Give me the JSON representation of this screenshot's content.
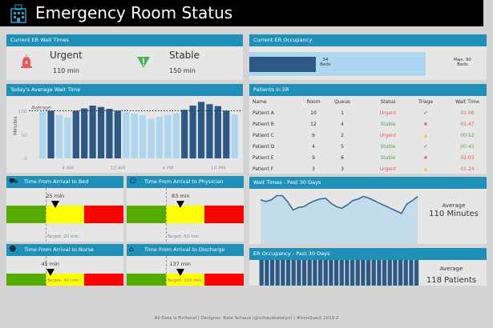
{
  "header": {
    "title": "Emergency Room Status",
    "icon": "hospital-icon"
  },
  "wait_times": {
    "title": "Current ER Wait Times",
    "urgent": {
      "label": "Urgent",
      "value": "110 min",
      "icon": "alarm-icon",
      "color": "#e85a5a"
    },
    "stable": {
      "label": "Stable",
      "value": "150 min",
      "icon": "warning-triangle-icon",
      "color": "#4caf50"
    }
  },
  "occupancy": {
    "title": "Current ER Occupancy",
    "current": 34,
    "current_label": "34",
    "current_unit": "Beds",
    "max": 90,
    "max_label": "Max. 90",
    "max_unit": "Beds"
  },
  "today_wait": {
    "title": "Today's Average Wait Time",
    "chart_data": {
      "type": "bar",
      "ylabel": "Minutes",
      "yticks": [
        0,
        50,
        100
      ],
      "ylim": [
        0,
        125
      ],
      "xticks": [
        "4 AM",
        "10 AM",
        "4 PM",
        "10 PM"
      ],
      "average_label": "Average",
      "average": 102,
      "values": [
        100,
        102,
        93,
        87,
        102,
        107,
        113,
        110,
        106,
        102,
        99,
        96,
        92,
        85,
        89,
        93,
        96,
        104,
        113,
        121,
        116,
        112,
        102,
        94
      ],
      "colors": {
        "above": "#2c5985",
        "below": "#aed6ee"
      }
    }
  },
  "patients": {
    "title": "Patients in ER",
    "columns": [
      "Name",
      "Room",
      "Queue",
      "Status",
      "Triage",
      "Wait Time"
    ],
    "rows": [
      {
        "name": "Patient A",
        "room": "10",
        "queue": "1",
        "status": "Urgent",
        "triage": "check",
        "wait": "01:06",
        "wait_color": "#e85a5a"
      },
      {
        "name": "Patient B",
        "room": "12",
        "queue": "4",
        "status": "Stable",
        "triage": "x",
        "wait": "01:47",
        "wait_color": "#e85a5a"
      },
      {
        "name": "Patient C",
        "room": "6",
        "queue": "2",
        "status": "Urgent",
        "triage": "warning",
        "wait": "00:52",
        "wait_color": "#4caf50"
      },
      {
        "name": "Patient D",
        "room": "4",
        "queue": "5",
        "status": "Stable",
        "triage": "check",
        "wait": "00:45",
        "wait_color": "#4caf50"
      },
      {
        "name": "Patient E",
        "room": "9",
        "queue": "6",
        "status": "Stable",
        "triage": "x",
        "wait": "02:03",
        "wait_color": "#e85a5a"
      },
      {
        "name": "Patient F",
        "room": "3",
        "queue": "3",
        "status": "Urgent",
        "triage": "warning",
        "wait": "01:24",
        "wait_color": "#e85a5a"
      }
    ]
  },
  "gauges": [
    {
      "title": "Time From Arrival to Bed",
      "icon": "bed-icon",
      "value_label": "25 min",
      "value": 25,
      "target_label": "Target: 20 min",
      "target": 20
    },
    {
      "title": "Time From Arrival to Physician",
      "icon": "physician-icon",
      "value_label": "83 min",
      "value": 83,
      "target_label": "Target: 60 min",
      "target": 60
    },
    {
      "title": "Time From Arrival to Nurse",
      "icon": "nurse-icon",
      "value_label": "45 min",
      "value": 45,
      "target_label": "Target: 40 min",
      "target": 40
    },
    {
      "title": "Time From Arrival to Discharge",
      "icon": "home-icon",
      "value_label": "137 min",
      "value": 137,
      "target_label": "Target: 100 min",
      "target": 100
    }
  ],
  "wait30": {
    "title": "Wait Times - Past 30 Days",
    "avg_label": "Average",
    "avg_value": "110 Minutes",
    "chart_data": {
      "type": "area",
      "values": [
        112,
        110,
        112,
        117,
        117,
        110,
        100,
        103,
        104,
        108,
        111,
        113,
        114,
        108,
        104,
        102,
        106,
        111,
        113,
        116,
        114,
        111,
        108,
        105,
        102,
        99,
        96,
        107,
        111,
        116
      ]
    }
  },
  "occ30": {
    "title": "ER Occupancy - Past 30 Days",
    "avg_label": "Average",
    "avg_value": "118 Patients",
    "chart_data": {
      "type": "bar",
      "values": [
        112,
        104,
        113,
        116,
        120,
        118,
        121,
        121,
        113,
        114,
        109,
        118,
        123,
        122,
        116,
        118,
        122,
        116,
        121,
        122,
        115,
        109,
        113,
        118,
        118,
        124,
        122,
        123,
        120,
        126
      ]
    }
  },
  "footer": "All Data is Fictional | Designer: Kate Schaub (@schaubkatelyn) | #IronQuest 2019.2"
}
